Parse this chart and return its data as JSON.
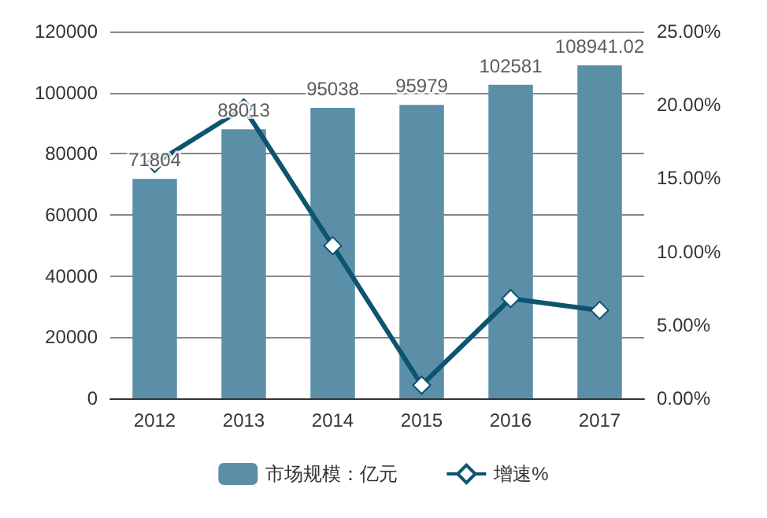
{
  "chart_data": {
    "type": "bar",
    "categories": [
      "2012",
      "2013",
      "2014",
      "2015",
      "2016",
      "2017"
    ],
    "series": [
      {
        "name": "市场规模：亿元",
        "color": "#5b8fa8",
        "values": [
          71804,
          88013,
          95038,
          95979,
          102581,
          108941.02
        ]
      },
      {
        "name": "增速%",
        "type": "line",
        "axis": "y2",
        "color": "#0d5470",
        "values": [
          16.0,
          19.8,
          10.4,
          0.9,
          6.8,
          6.0
        ],
        "marker": "diamond"
      }
    ],
    "ylim": [
      0,
      120000
    ],
    "yticks": [
      0,
      20000,
      40000,
      60000,
      80000,
      100000,
      120000
    ],
    "y2lim": [
      0,
      25
    ],
    "y2ticks": [
      {
        "value": 0,
        "label": "0.00%"
      },
      {
        "value": 5,
        "label": "5.00%"
      },
      {
        "value": 10,
        "label": "10.00%"
      },
      {
        "value": 15,
        "label": "15.00%"
      },
      {
        "value": 20,
        "label": "20.00%"
      },
      {
        "value": 25,
        "label": "25.00%"
      }
    ],
    "value_labels": [
      "71804",
      "88013",
      "95038",
      "95979",
      "102581",
      "108941.02"
    ],
    "grid": "y",
    "legend": "bottom"
  }
}
